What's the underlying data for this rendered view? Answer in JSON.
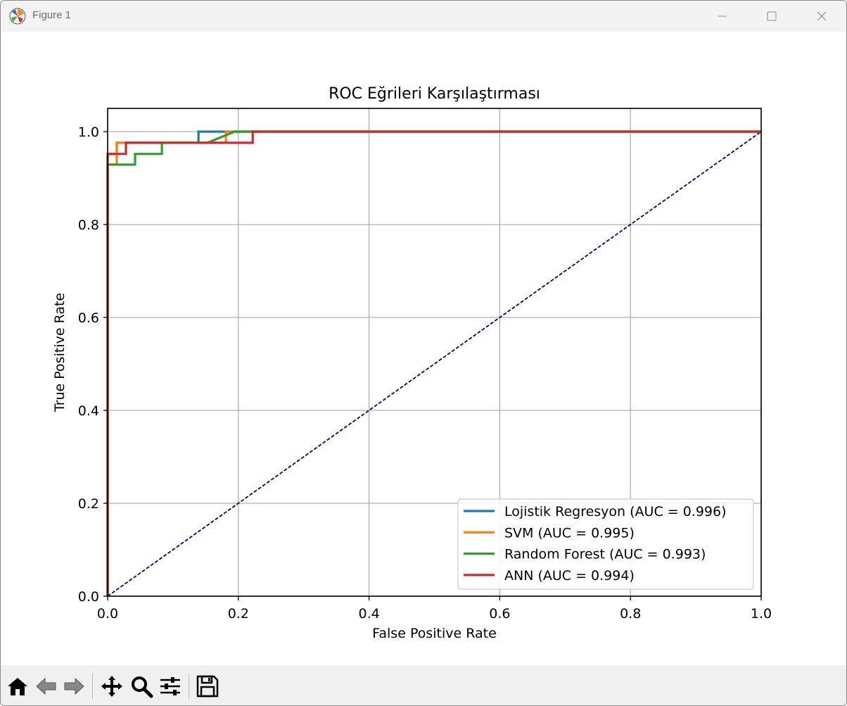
{
  "window": {
    "title": "Figure 1",
    "controls": [
      "minimize-icon",
      "maximize-icon",
      "close-icon"
    ]
  },
  "toolbar": {
    "tools": [
      "home-icon",
      "back-arrow-icon",
      "forward-arrow-icon",
      "pan-icon",
      "zoom-icon",
      "configure-subplots-icon",
      "save-icon"
    ]
  },
  "chart_data": {
    "type": "line",
    "title": "ROC Eğrileri Karşılaştırması",
    "xlabel": "False Positive Rate",
    "ylabel": "True Positive Rate",
    "xlim": [
      0.0,
      1.0
    ],
    "ylim": [
      0.0,
      1.05
    ],
    "xticks": [
      "0.0",
      "0.2",
      "0.4",
      "0.6",
      "0.8",
      "1.0"
    ],
    "yticks": [
      "0.0",
      "0.2",
      "0.4",
      "0.6",
      "0.8",
      "1.0"
    ],
    "grid": true,
    "legend_position": "lower-right",
    "series": [
      {
        "name": "Lojistik Regresyon (AUC = 0.996)",
        "color": "#1f77b4",
        "x": [
          0.0,
          0.0,
          0.014,
          0.014,
          0.139,
          0.139,
          1.0
        ],
        "y": [
          0.0,
          0.952,
          0.952,
          0.976,
          0.976,
          1.0,
          1.0
        ]
      },
      {
        "name": "SVM (AUC = 0.995)",
        "color": "#ff7f0e",
        "x": [
          0.0,
          0.0,
          0.014,
          0.014,
          0.181,
          0.181,
          1.0
        ],
        "y": [
          0.0,
          0.929,
          0.929,
          0.976,
          0.976,
          1.0,
          1.0
        ]
      },
      {
        "name": "Random Forest (AUC = 0.993)",
        "color": "#2ca02c",
        "x": [
          0.0,
          0.0,
          0.042,
          0.042,
          0.083,
          0.083,
          0.153,
          0.194,
          1.0
        ],
        "y": [
          0.0,
          0.929,
          0.929,
          0.952,
          0.952,
          0.976,
          0.976,
          1.0,
          1.0
        ]
      },
      {
        "name": "ANN (AUC = 0.994)",
        "color": "#d62728",
        "x": [
          0.0,
          0.0,
          0.028,
          0.028,
          0.222,
          0.222,
          1.0
        ],
        "y": [
          0.0,
          0.952,
          0.952,
          0.976,
          0.976,
          1.0,
          1.0
        ]
      }
    ],
    "reference_line": {
      "x": [
        0,
        1
      ],
      "y": [
        0,
        1
      ],
      "color": "#000080",
      "style": "dashed"
    }
  }
}
